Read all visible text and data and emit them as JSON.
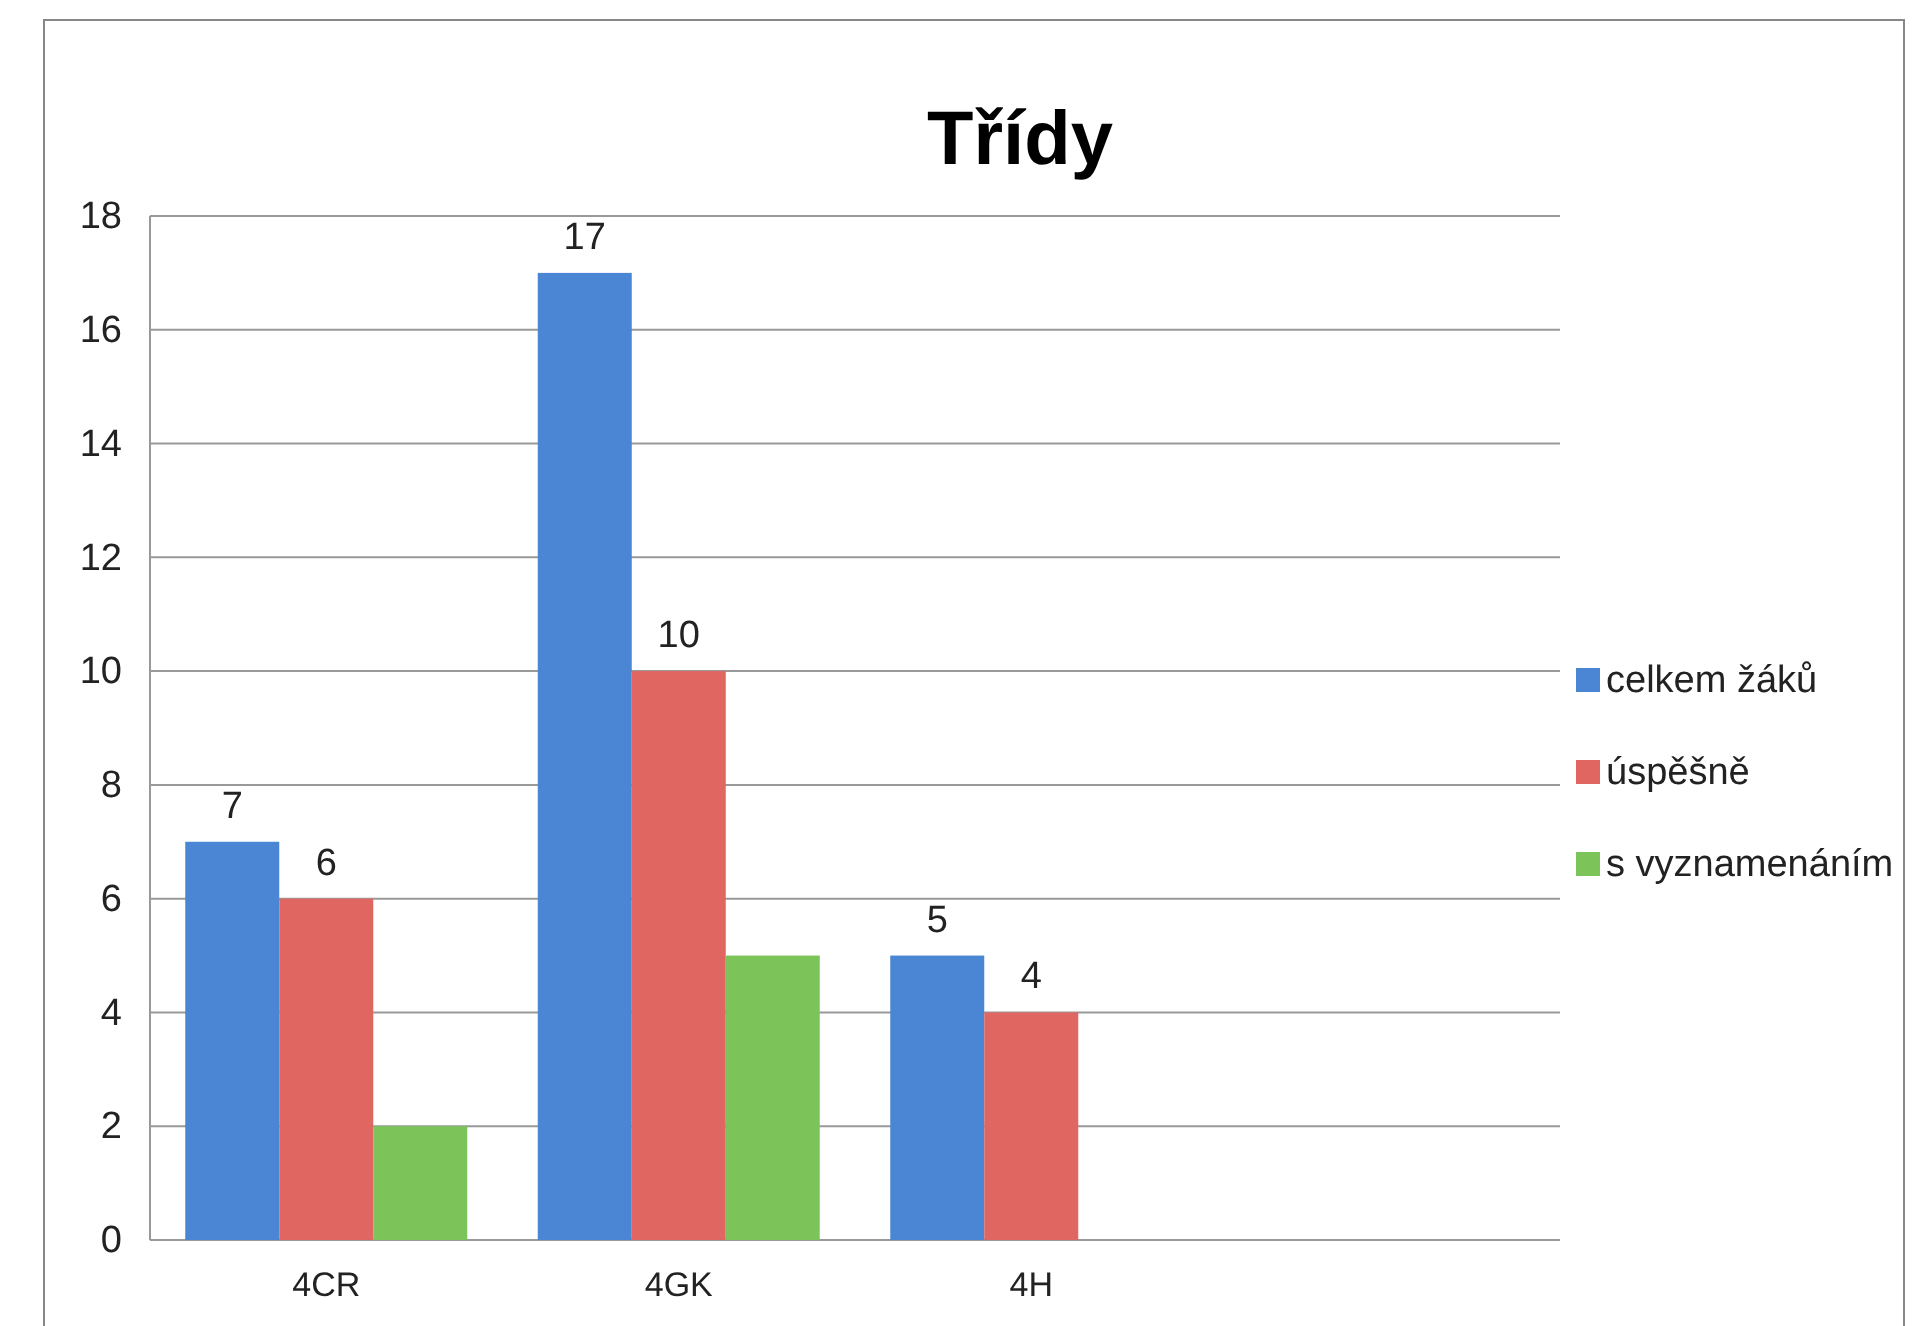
{
  "chart_data": {
    "type": "bar",
    "title": "Třídy",
    "categories": [
      "4CR",
      "4GK",
      "4H",
      null
    ],
    "series": [
      {
        "name": "celkem žáků",
        "color": "#4a86d4",
        "values": [
          7,
          17,
          5,
          null
        ],
        "value_labels": [
          "7",
          "17",
          "5",
          null
        ]
      },
      {
        "name": "úspěšně",
        "color": "#e06661",
        "values": [
          6,
          10,
          4,
          null
        ],
        "value_labels": [
          "6",
          "10",
          "4",
          null
        ]
      },
      {
        "name": "s vyznamenáním",
        "color": "#7cc35a",
        "values": [
          2,
          5,
          null,
          null
        ]
      }
    ],
    "ylim": [
      0,
      18
    ],
    "yticks": [
      0,
      2,
      4,
      6,
      8,
      10,
      12,
      14,
      16,
      18
    ],
    "grid": "y",
    "legend": "right"
  }
}
